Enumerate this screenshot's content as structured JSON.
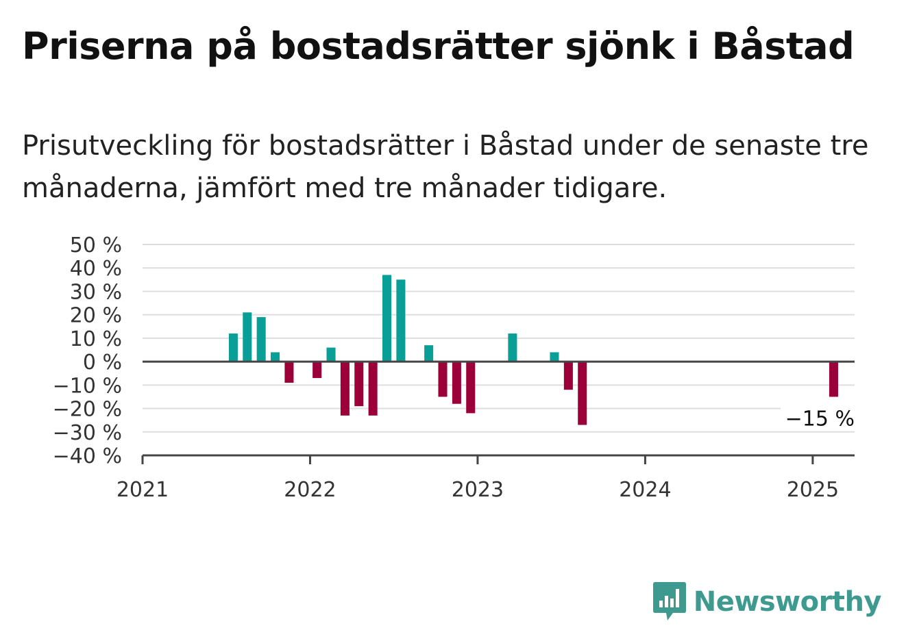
{
  "header": {
    "title": "Priserna på bostadsrätter sjönk i Båstad",
    "subtitle": "Prisutveckling för bostadsrätter i Båstad under de senaste tre månaderna, jämfört med tre månader tidigare."
  },
  "brand": {
    "name": "Newsworthy",
    "icon": "newsworthy-logo-icon",
    "color": "#3e9a8f"
  },
  "colors": {
    "positive": "#0a9f96",
    "negative": "#9b0038",
    "grid": "#dddddd",
    "axis": "#444444"
  },
  "chart_data": {
    "type": "bar",
    "title": "Priserna på bostadsrätter sjönk i Båstad",
    "subtitle": "Prisutveckling för bostadsrätter i Båstad under de senaste tre månaderna, jämfört med tre månader tidigare.",
    "xlabel": "",
    "ylabel": "",
    "unit": "%",
    "ylim": [
      -40,
      50
    ],
    "yticks": [
      50,
      40,
      30,
      20,
      10,
      0,
      -10,
      -20,
      -30,
      -40
    ],
    "ytick_labels": [
      "50 %",
      "40 %",
      "30 %",
      "20 %",
      "10 %",
      "0 %",
      "−10 %",
      "−20 %",
      "−30 %",
      "−40 %"
    ],
    "xlim": [
      "2021-01",
      "2025-04"
    ],
    "xticks": [
      "2021",
      "2022",
      "2023",
      "2024",
      "2025"
    ],
    "grid": true,
    "series": [
      {
        "data": [
          {
            "date": "2021-07",
            "value": 12
          },
          {
            "date": "2021-08",
            "value": 21
          },
          {
            "date": "2021-09",
            "value": 19
          },
          {
            "date": "2021-10",
            "value": 4
          },
          {
            "date": "2021-11",
            "value": -9
          },
          {
            "date": "2022-01",
            "value": -7
          },
          {
            "date": "2022-02",
            "value": 6
          },
          {
            "date": "2022-03",
            "value": -23
          },
          {
            "date": "2022-04",
            "value": -19
          },
          {
            "date": "2022-05",
            "value": -23
          },
          {
            "date": "2022-06",
            "value": 37
          },
          {
            "date": "2022-07",
            "value": 35
          },
          {
            "date": "2022-09",
            "value": 7
          },
          {
            "date": "2022-10",
            "value": -15
          },
          {
            "date": "2022-11",
            "value": -18
          },
          {
            "date": "2022-12",
            "value": -22
          },
          {
            "date": "2023-03",
            "value": 12
          },
          {
            "date": "2023-06",
            "value": 4
          },
          {
            "date": "2023-07",
            "value": -12
          },
          {
            "date": "2023-08",
            "value": -27
          },
          {
            "date": "2025-02",
            "value": -15
          }
        ]
      }
    ],
    "annotations": [
      {
        "date": "2025-02",
        "text": "−15 %"
      }
    ]
  }
}
